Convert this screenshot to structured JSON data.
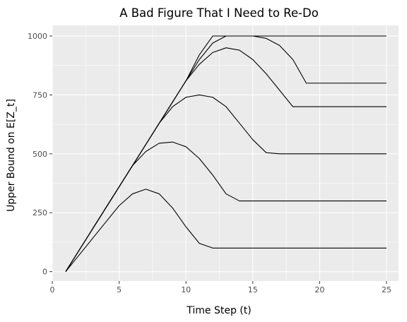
{
  "chart_data": {
    "type": "line",
    "title": "A Bad Figure That I Need to Re-Do",
    "xlabel": "Time Step (t)",
    "ylabel": "Upper Bound on E[Z_t]",
    "xlim": [
      0,
      25.9
    ],
    "ylim": [
      -40,
      1045
    ],
    "x_ticks": [
      0,
      5,
      10,
      15,
      20,
      25
    ],
    "y_ticks": [
      0,
      250,
      500,
      750,
      1000
    ],
    "grid": true,
    "legend": "none",
    "x": [
      1,
      2,
      3,
      4,
      5,
      6,
      7,
      8,
      9,
      10,
      11,
      12,
      13,
      14,
      15,
      16,
      17,
      18,
      19,
      20,
      21,
      22,
      23,
      24,
      25
    ],
    "series": [
      {
        "values": [
          0,
          70,
          140,
          210,
          280,
          330,
          350,
          330,
          270,
          190,
          120,
          100,
          100,
          100,
          100,
          100,
          100,
          100,
          100,
          100,
          100,
          100,
          100,
          100,
          100
        ]
      },
      {
        "values": [
          0,
          90,
          180,
          270,
          360,
          450,
          510,
          545,
          550,
          530,
          480,
          410,
          330,
          300,
          300,
          300,
          300,
          300,
          300,
          300,
          300,
          300,
          300,
          300,
          300
        ]
      },
      {
        "values": [
          0,
          90,
          180,
          270,
          360,
          450,
          540,
          630,
          700,
          740,
          750,
          740,
          700,
          630,
          560,
          505,
          500,
          500,
          500,
          500,
          500,
          500,
          500,
          500,
          500
        ]
      },
      {
        "values": [
          0,
          90,
          180,
          270,
          360,
          450,
          540,
          630,
          720,
          810,
          880,
          930,
          950,
          940,
          900,
          840,
          770,
          700,
          700,
          700,
          700,
          700,
          700,
          700,
          700
        ]
      },
      {
        "values": [
          0,
          90,
          180,
          270,
          360,
          450,
          540,
          630,
          720,
          810,
          900,
          970,
          1000,
          1000,
          1000,
          990,
          960,
          900,
          800,
          800,
          800,
          800,
          800,
          800,
          800
        ]
      },
      {
        "values": [
          0,
          90,
          180,
          270,
          360,
          450,
          540,
          630,
          720,
          810,
          920,
          1000,
          1000,
          1000,
          1000,
          1000,
          1000,
          1000,
          1000,
          1000,
          1000,
          1000,
          1000,
          1000,
          1000
        ]
      }
    ],
    "line_color": "#000000",
    "panel_color": "#EBEBEB",
    "grid_color": "#FFFFFF"
  }
}
